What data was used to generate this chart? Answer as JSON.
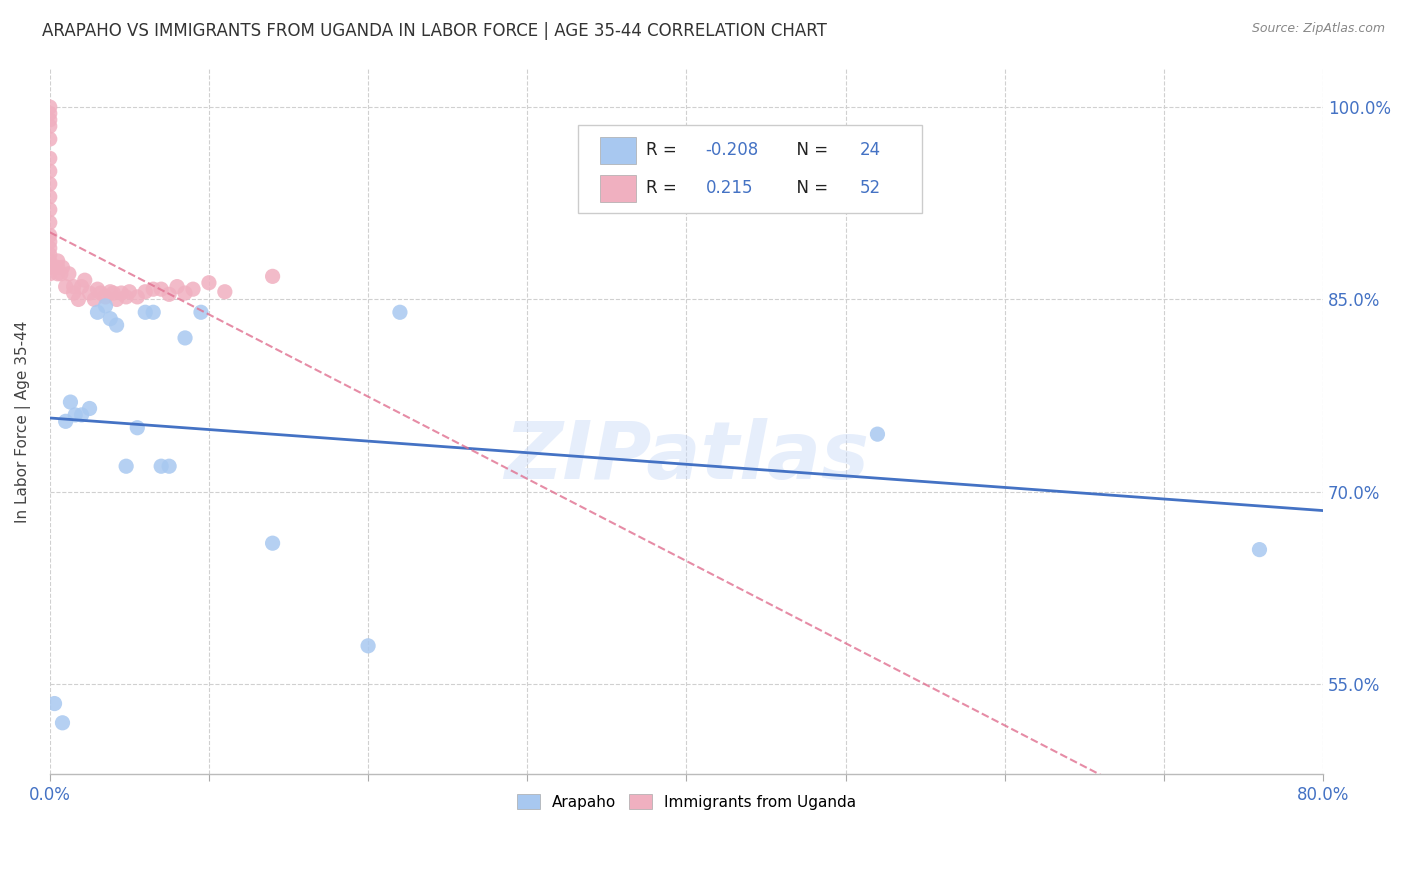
{
  "title": "ARAPAHO VS IMMIGRANTS FROM UGANDA IN LABOR FORCE | AGE 35-44 CORRELATION CHART",
  "source": "Source: ZipAtlas.com",
  "ylabel": "In Labor Force | Age 35-44",
  "xlim": [
    0.0,
    0.8
  ],
  "ylim": [
    0.48,
    1.03
  ],
  "xticks": [
    0.0,
    0.1,
    0.2,
    0.3,
    0.4,
    0.5,
    0.6,
    0.7,
    0.8
  ],
  "yticks": [
    0.55,
    0.7,
    0.85,
    1.0
  ],
  "ytick_labels": [
    "55.0%",
    "70.0%",
    "85.0%",
    "100.0%"
  ],
  "xtick_labels": [
    "0.0%",
    "",
    "",
    "",
    "",
    "",
    "",
    "",
    "80.0%"
  ],
  "legend_arapaho_R": "-0.208",
  "legend_arapaho_N": "24",
  "legend_uganda_R": "0.215",
  "legend_uganda_N": "52",
  "watermark": "ZIPatlas",
  "arapaho_color": "#a8c8f0",
  "arapaho_line_color": "#4472c4",
  "uganda_color": "#f0b0c0",
  "uganda_line_color": "#e07090",
  "arapaho_x": [
    0.003,
    0.008,
    0.01,
    0.013,
    0.016,
    0.02,
    0.025,
    0.03,
    0.035,
    0.038,
    0.042,
    0.048,
    0.055,
    0.06,
    0.065,
    0.07,
    0.075,
    0.085,
    0.095,
    0.14,
    0.2,
    0.22,
    0.52,
    0.76
  ],
  "arapaho_y": [
    0.535,
    0.52,
    0.755,
    0.77,
    0.76,
    0.76,
    0.765,
    0.84,
    0.845,
    0.835,
    0.83,
    0.72,
    0.75,
    0.84,
    0.84,
    0.72,
    0.72,
    0.82,
    0.84,
    0.66,
    0.58,
    0.84,
    0.745,
    0.655
  ],
  "uganda_x": [
    0.0,
    0.0,
    0.0,
    0.0,
    0.0,
    0.0,
    0.0,
    0.0,
    0.0,
    0.0,
    0.0,
    0.0,
    0.0,
    0.0,
    0.0,
    0.0,
    0.0,
    0.0,
    0.005,
    0.005,
    0.005,
    0.007,
    0.008,
    0.01,
    0.012,
    0.015,
    0.015,
    0.018,
    0.02,
    0.022,
    0.025,
    0.028,
    0.03,
    0.032,
    0.035,
    0.038,
    0.04,
    0.042,
    0.045,
    0.048,
    0.05,
    0.055,
    0.06,
    0.065,
    0.07,
    0.075,
    0.08,
    0.085,
    0.09,
    0.1,
    0.11,
    0.14
  ],
  "uganda_y": [
    0.87,
    0.875,
    0.88,
    0.885,
    0.89,
    0.895,
    0.9,
    0.91,
    0.92,
    0.93,
    0.94,
    0.95,
    0.96,
    0.975,
    0.985,
    0.99,
    0.995,
    1.0,
    0.87,
    0.875,
    0.88,
    0.87,
    0.875,
    0.86,
    0.87,
    0.855,
    0.86,
    0.85,
    0.86,
    0.865,
    0.855,
    0.85,
    0.858,
    0.855,
    0.852,
    0.856,
    0.855,
    0.85,
    0.855,
    0.852,
    0.856,
    0.852,
    0.856,
    0.858,
    0.858,
    0.854,
    0.86,
    0.855,
    0.858,
    0.863,
    0.856,
    0.868
  ],
  "background_color": "#ffffff",
  "grid_color": "#d0d0d0"
}
